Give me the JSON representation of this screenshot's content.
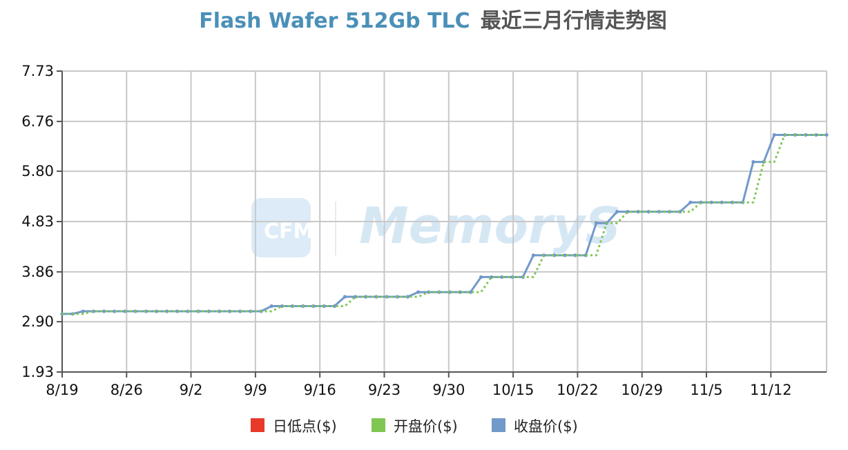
{
  "chart_data": {
    "type": "line",
    "title": "Flash Wafer 512Gb TLC",
    "title_cn": "最近三月行情走势图",
    "xlabel": "",
    "ylabel": "",
    "ylim": [
      1.93,
      7.73
    ],
    "yticks": [
      "1.93",
      "2.90",
      "3.86",
      "4.83",
      "5.80",
      "6.76",
      "7.73"
    ],
    "xtick_labels": [
      "8/19",
      "8/26",
      "9/2",
      "9/9",
      "9/16",
      "9/23",
      "9/30",
      "10/15",
      "10/22",
      "10/29",
      "11/5",
      "11/12"
    ],
    "grid": true,
    "legend_position": "bottom",
    "watermark": "CFM MemoryS",
    "series": [
      {
        "name": "日低点($)",
        "color": "#e8392a",
        "style": "solid",
        "values": []
      },
      {
        "name": "开盘价($)",
        "color": "#7fc653",
        "style": "dotted",
        "values": [
          3.05,
          3.05,
          3.05,
          3.1,
          3.1,
          3.1,
          3.1,
          3.1,
          3.1,
          3.1,
          3.1,
          3.1,
          3.1,
          3.1,
          3.1,
          3.1,
          3.1,
          3.1,
          3.1,
          3.1,
          3.1,
          3.2,
          3.2,
          3.2,
          3.2,
          3.2,
          3.2,
          3.2,
          3.38,
          3.38,
          3.38,
          3.38,
          3.38,
          3.38,
          3.38,
          3.47,
          3.47,
          3.47,
          3.47,
          3.47,
          3.47,
          3.76,
          3.76,
          3.76,
          3.76,
          3.76,
          4.18,
          4.18,
          4.18,
          4.18,
          4.18,
          4.18,
          4.8,
          4.8,
          5.02,
          5.02,
          5.02,
          5.02,
          5.02,
          5.02,
          5.02,
          5.2,
          5.2,
          5.2,
          5.2,
          5.2,
          5.2,
          5.98,
          5.98,
          6.5,
          6.5,
          6.5,
          6.5,
          6.5
        ]
      },
      {
        "name": "收盘价($)",
        "color": "#7199c9",
        "style": "solid",
        "values": [
          3.05,
          3.05,
          3.1,
          3.1,
          3.1,
          3.1,
          3.1,
          3.1,
          3.1,
          3.1,
          3.1,
          3.1,
          3.1,
          3.1,
          3.1,
          3.1,
          3.1,
          3.1,
          3.1,
          3.1,
          3.2,
          3.2,
          3.2,
          3.2,
          3.2,
          3.2,
          3.2,
          3.38,
          3.38,
          3.38,
          3.38,
          3.38,
          3.38,
          3.38,
          3.47,
          3.47,
          3.47,
          3.47,
          3.47,
          3.47,
          3.76,
          3.76,
          3.76,
          3.76,
          3.76,
          4.18,
          4.18,
          4.18,
          4.18,
          4.18,
          4.18,
          4.8,
          4.8,
          5.02,
          5.02,
          5.02,
          5.02,
          5.02,
          5.02,
          5.02,
          5.2,
          5.2,
          5.2,
          5.2,
          5.2,
          5.2,
          5.98,
          5.98,
          6.5,
          6.5,
          6.5,
          6.5,
          6.5,
          6.5
        ]
      }
    ]
  }
}
